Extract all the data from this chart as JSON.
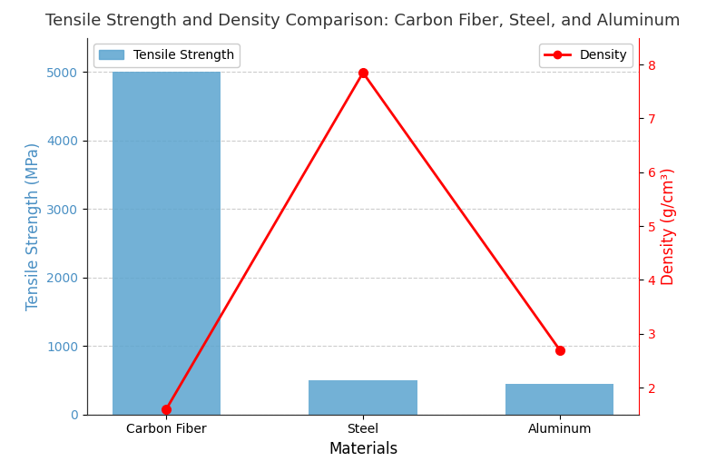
{
  "title": "Tensile Strength and Density Comparison: Carbon Fiber, Steel, and Aluminum",
  "materials": [
    "Carbon Fiber",
    "Steel",
    "Aluminum"
  ],
  "tensile_strength": [
    5000,
    500,
    450
  ],
  "density": [
    1.6,
    7.85,
    2.7
  ],
  "bar_color": "#5BA4CF",
  "line_color": "red",
  "bar_alpha": 0.85,
  "bar_width": 0.55,
  "xlabel": "Materials",
  "ylabel_left": "Tensile Strength (MPa)",
  "ylabel_right": "Density (g/cm³)",
  "ylim_left": [
    0,
    5500
  ],
  "ylim_right": [
    1.5,
    8.5
  ],
  "yticks_left": [
    0,
    1000,
    2000,
    3000,
    4000,
    5000
  ],
  "yticks_right": [
    2,
    3,
    4,
    5,
    6,
    7,
    8
  ],
  "legend_bar_label": "Tensile Strength",
  "legend_line_label": "Density",
  "title_fontsize": 13,
  "axis_label_fontsize": 12,
  "tick_fontsize": 10,
  "background_color": "#ffffff",
  "grid_color": "#cccccc",
  "left_axis_color": "#4A90C4",
  "right_axis_color": "red",
  "spine_color": "#333333"
}
